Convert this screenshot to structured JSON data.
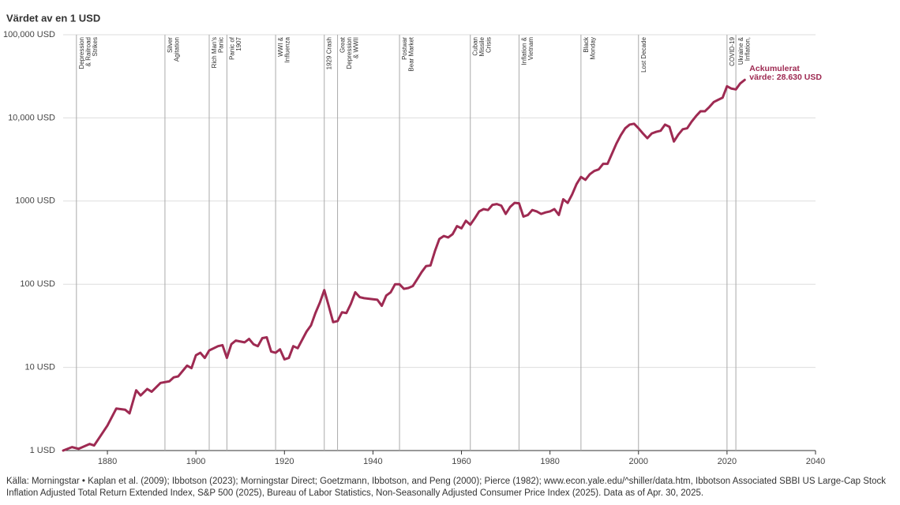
{
  "chart_data": {
    "type": "line",
    "title": "Värdet av en 1 USD",
    "log_scale": true,
    "grid": true,
    "xlim": [
      1870,
      2040
    ],
    "xticks": [
      1880,
      1900,
      1920,
      1940,
      1960,
      1980,
      2000,
      2020,
      2040
    ],
    "ylim": [
      1,
      100000
    ],
    "yticks": [
      {
        "value": 1,
        "label": "1 USD"
      },
      {
        "value": 10,
        "label": "10 USD"
      },
      {
        "value": 100,
        "label": "100 USD"
      },
      {
        "value": 1000,
        "label": "1000 USD"
      },
      {
        "value": 10000,
        "label": "10,000 USD"
      },
      {
        "value": 100000,
        "label": "100,000 USD"
      }
    ],
    "series": [
      {
        "color": "#9e2a52",
        "x": [
          1870,
          1872,
          1873.5,
          1876,
          1877,
          1880,
          1882,
          1884,
          1885,
          1886.5,
          1887.5,
          1889,
          1890,
          1892,
          1894,
          1895,
          1896,
          1898,
          1899,
          1900,
          1901,
          1902,
          1903,
          1905,
          1906,
          1907,
          1908,
          1909,
          1911,
          1912,
          1913,
          1914,
          1915,
          1916,
          1917,
          1918,
          1919,
          1920,
          1921,
          1922,
          1923,
          1925,
          1926,
          1927,
          1928,
          1929,
          1930,
          1931,
          1932,
          1933,
          1934,
          1935,
          1936,
          1937,
          1938,
          1940,
          1941,
          1942,
          1943,
          1944,
          1945,
          1946,
          1947,
          1948,
          1949,
          1950,
          1951,
          1952,
          1953,
          1954,
          1955,
          1956,
          1957,
          1958,
          1959,
          1960,
          1961,
          1962,
          1963,
          1964,
          1965,
          1966,
          1967,
          1968,
          1969,
          1970,
          1971,
          1972,
          1973,
          1974,
          1975,
          1976,
          1977,
          1978,
          1979,
          1980,
          1981,
          1982,
          1983,
          1984,
          1985,
          1986,
          1987,
          1988,
          1989,
          1990,
          1991,
          1992,
          1993,
          1994,
          1995,
          1996,
          1997,
          1998,
          1999,
          2000,
          2001,
          2002,
          2003,
          2004,
          2005,
          2006,
          2007,
          2008,
          2009,
          2010,
          2011,
          2012,
          2013,
          2014,
          2015,
          2016,
          2017,
          2018,
          2019,
          2020,
          2021,
          2022,
          2023,
          2024
        ],
        "values": [
          1.0,
          1.1,
          1.05,
          1.2,
          1.15,
          2.0,
          3.2,
          3.1,
          2.8,
          5.3,
          4.6,
          5.5,
          5.1,
          6.5,
          6.8,
          7.6,
          7.8,
          10.5,
          9.8,
          14,
          15,
          13,
          16,
          18,
          18.5,
          13,
          19,
          21,
          20,
          22,
          19,
          18,
          22.5,
          23,
          15.5,
          15,
          16.5,
          12.5,
          13,
          18,
          17,
          27,
          32,
          45,
          60,
          85,
          55,
          35,
          36,
          46,
          45,
          58,
          80,
          70,
          68,
          66,
          65,
          55,
          73,
          80,
          100,
          100,
          88,
          90,
          95,
          115,
          140,
          165,
          168,
          250,
          350,
          380,
          365,
          400,
          500,
          470,
          580,
          520,
          620,
          750,
          800,
          780,
          900,
          920,
          880,
          700,
          850,
          950,
          940,
          650,
          680,
          780,
          750,
          700,
          730,
          750,
          800,
          680,
          1050,
          950,
          1200,
          1600,
          1950,
          1800,
          2100,
          2300,
          2400,
          2800,
          2800,
          3700,
          4900,
          6200,
          7500,
          8300,
          8500,
          7500,
          6500,
          5700,
          6500,
          6800,
          7000,
          8300,
          7800,
          5200,
          6300,
          7300,
          7500,
          9000,
          10500,
          12000,
          12000,
          13500,
          15500,
          16500,
          17500,
          24000,
          22500,
          22000,
          26000,
          28630
        ]
      }
    ],
    "annotation": [
      "Ackumulerat",
      "värde: 28.630 USD"
    ],
    "events": [
      {
        "year": 1873,
        "label": [
          "Depression",
          "& Railroad",
          "Strikes"
        ]
      },
      {
        "year": 1893,
        "label": [
          "Silver",
          "Agitation"
        ]
      },
      {
        "year": 1903,
        "label": [
          "Rich Man's",
          "Panic"
        ]
      },
      {
        "year": 1907,
        "label": [
          "Panic of",
          "1907"
        ]
      },
      {
        "year": 1918,
        "label": [
          "WWI &",
          "Influenza"
        ]
      },
      {
        "year": 1929,
        "label": [
          "1929 Crash"
        ]
      },
      {
        "year": 1932,
        "label": [
          "Great",
          "Depression",
          "& WWII"
        ]
      },
      {
        "year": 1946,
        "label": [
          "Postwar",
          "Bear Market"
        ]
      },
      {
        "year": 1962,
        "label": [
          "Cuban",
          "Missile",
          "Crisis"
        ]
      },
      {
        "year": 1973,
        "label": [
          "Inflation &",
          "Vietnam"
        ]
      },
      {
        "year": 1987,
        "label": [
          "Black",
          "Monday"
        ]
      },
      {
        "year": 2000,
        "label": [
          "Lost Decade"
        ]
      },
      {
        "year": 2020,
        "label": [
          "COVID-19"
        ]
      },
      {
        "year": 2022,
        "label": [
          "Ukraine &",
          "Inflation,"
        ]
      }
    ],
    "source": "Källa: Morningstar • Kaplan et al. (2009); Ibbotson (2023); Morningstar Direct; Goetzmann, Ibbotson, and Peng (2000); Pierce (1982); www.econ.yale.edu/^shiller/data.htm, Ibbotson Associated SBBI US Large-Cap Stock Inflation Adjusted Total Return Extended Index, S&P 500 (2025), Bureau of Labor Statistics, Non-Seasonally Adjusted Consumer Price Index (2025). Data as of Apr. 30, 2025."
  }
}
